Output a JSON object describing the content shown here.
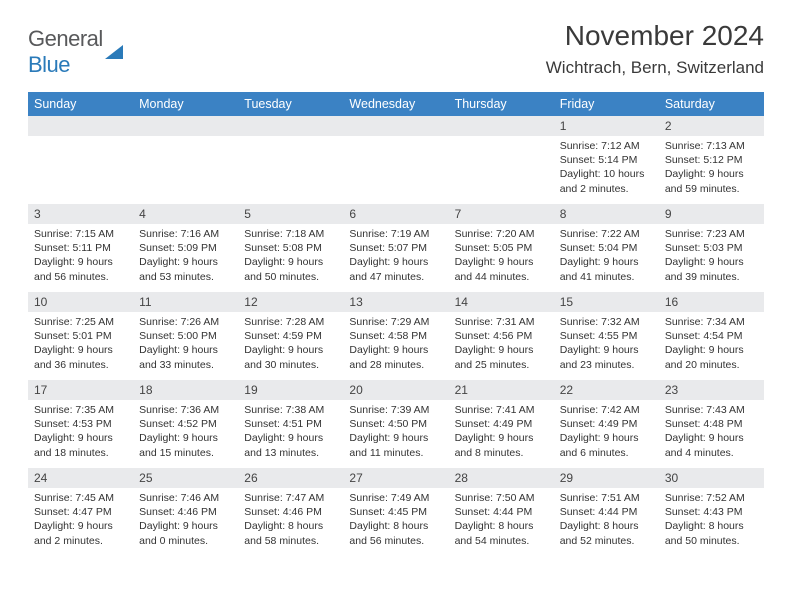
{
  "logo": {
    "text1": "General",
    "text2": "Blue"
  },
  "title": "November 2024",
  "location": "Wichtrach, Bern, Switzerland",
  "colors": {
    "header_bg": "#3b82c4",
    "header_fg": "#ffffff",
    "daynum_bg": "#e9eaec",
    "text": "#333333",
    "logo_gray": "#58595b",
    "logo_blue": "#2a7ab9"
  },
  "weekdays": [
    "Sunday",
    "Monday",
    "Tuesday",
    "Wednesday",
    "Thursday",
    "Friday",
    "Saturday"
  ],
  "weeks": [
    [
      {
        "n": "",
        "lines": []
      },
      {
        "n": "",
        "lines": []
      },
      {
        "n": "",
        "lines": []
      },
      {
        "n": "",
        "lines": []
      },
      {
        "n": "",
        "lines": []
      },
      {
        "n": "1",
        "lines": [
          "Sunrise: 7:12 AM",
          "Sunset: 5:14 PM",
          "Daylight: 10 hours and 2 minutes."
        ]
      },
      {
        "n": "2",
        "lines": [
          "Sunrise: 7:13 AM",
          "Sunset: 5:12 PM",
          "Daylight: 9 hours and 59 minutes."
        ]
      }
    ],
    [
      {
        "n": "3",
        "lines": [
          "Sunrise: 7:15 AM",
          "Sunset: 5:11 PM",
          "Daylight: 9 hours and 56 minutes."
        ]
      },
      {
        "n": "4",
        "lines": [
          "Sunrise: 7:16 AM",
          "Sunset: 5:09 PM",
          "Daylight: 9 hours and 53 minutes."
        ]
      },
      {
        "n": "5",
        "lines": [
          "Sunrise: 7:18 AM",
          "Sunset: 5:08 PM",
          "Daylight: 9 hours and 50 minutes."
        ]
      },
      {
        "n": "6",
        "lines": [
          "Sunrise: 7:19 AM",
          "Sunset: 5:07 PM",
          "Daylight: 9 hours and 47 minutes."
        ]
      },
      {
        "n": "7",
        "lines": [
          "Sunrise: 7:20 AM",
          "Sunset: 5:05 PM",
          "Daylight: 9 hours and 44 minutes."
        ]
      },
      {
        "n": "8",
        "lines": [
          "Sunrise: 7:22 AM",
          "Sunset: 5:04 PM",
          "Daylight: 9 hours and 41 minutes."
        ]
      },
      {
        "n": "9",
        "lines": [
          "Sunrise: 7:23 AM",
          "Sunset: 5:03 PM",
          "Daylight: 9 hours and 39 minutes."
        ]
      }
    ],
    [
      {
        "n": "10",
        "lines": [
          "Sunrise: 7:25 AM",
          "Sunset: 5:01 PM",
          "Daylight: 9 hours and 36 minutes."
        ]
      },
      {
        "n": "11",
        "lines": [
          "Sunrise: 7:26 AM",
          "Sunset: 5:00 PM",
          "Daylight: 9 hours and 33 minutes."
        ]
      },
      {
        "n": "12",
        "lines": [
          "Sunrise: 7:28 AM",
          "Sunset: 4:59 PM",
          "Daylight: 9 hours and 30 minutes."
        ]
      },
      {
        "n": "13",
        "lines": [
          "Sunrise: 7:29 AM",
          "Sunset: 4:58 PM",
          "Daylight: 9 hours and 28 minutes."
        ]
      },
      {
        "n": "14",
        "lines": [
          "Sunrise: 7:31 AM",
          "Sunset: 4:56 PM",
          "Daylight: 9 hours and 25 minutes."
        ]
      },
      {
        "n": "15",
        "lines": [
          "Sunrise: 7:32 AM",
          "Sunset: 4:55 PM",
          "Daylight: 9 hours and 23 minutes."
        ]
      },
      {
        "n": "16",
        "lines": [
          "Sunrise: 7:34 AM",
          "Sunset: 4:54 PM",
          "Daylight: 9 hours and 20 minutes."
        ]
      }
    ],
    [
      {
        "n": "17",
        "lines": [
          "Sunrise: 7:35 AM",
          "Sunset: 4:53 PM",
          "Daylight: 9 hours and 18 minutes."
        ]
      },
      {
        "n": "18",
        "lines": [
          "Sunrise: 7:36 AM",
          "Sunset: 4:52 PM",
          "Daylight: 9 hours and 15 minutes."
        ]
      },
      {
        "n": "19",
        "lines": [
          "Sunrise: 7:38 AM",
          "Sunset: 4:51 PM",
          "Daylight: 9 hours and 13 minutes."
        ]
      },
      {
        "n": "20",
        "lines": [
          "Sunrise: 7:39 AM",
          "Sunset: 4:50 PM",
          "Daylight: 9 hours and 11 minutes."
        ]
      },
      {
        "n": "21",
        "lines": [
          "Sunrise: 7:41 AM",
          "Sunset: 4:49 PM",
          "Daylight: 9 hours and 8 minutes."
        ]
      },
      {
        "n": "22",
        "lines": [
          "Sunrise: 7:42 AM",
          "Sunset: 4:49 PM",
          "Daylight: 9 hours and 6 minutes."
        ]
      },
      {
        "n": "23",
        "lines": [
          "Sunrise: 7:43 AM",
          "Sunset: 4:48 PM",
          "Daylight: 9 hours and 4 minutes."
        ]
      }
    ],
    [
      {
        "n": "24",
        "lines": [
          "Sunrise: 7:45 AM",
          "Sunset: 4:47 PM",
          "Daylight: 9 hours and 2 minutes."
        ]
      },
      {
        "n": "25",
        "lines": [
          "Sunrise: 7:46 AM",
          "Sunset: 4:46 PM",
          "Daylight: 9 hours and 0 minutes."
        ]
      },
      {
        "n": "26",
        "lines": [
          "Sunrise: 7:47 AM",
          "Sunset: 4:46 PM",
          "Daylight: 8 hours and 58 minutes."
        ]
      },
      {
        "n": "27",
        "lines": [
          "Sunrise: 7:49 AM",
          "Sunset: 4:45 PM",
          "Daylight: 8 hours and 56 minutes."
        ]
      },
      {
        "n": "28",
        "lines": [
          "Sunrise: 7:50 AM",
          "Sunset: 4:44 PM",
          "Daylight: 8 hours and 54 minutes."
        ]
      },
      {
        "n": "29",
        "lines": [
          "Sunrise: 7:51 AM",
          "Sunset: 4:44 PM",
          "Daylight: 8 hours and 52 minutes."
        ]
      },
      {
        "n": "30",
        "lines": [
          "Sunrise: 7:52 AM",
          "Sunset: 4:43 PM",
          "Daylight: 8 hours and 50 minutes."
        ]
      }
    ]
  ]
}
